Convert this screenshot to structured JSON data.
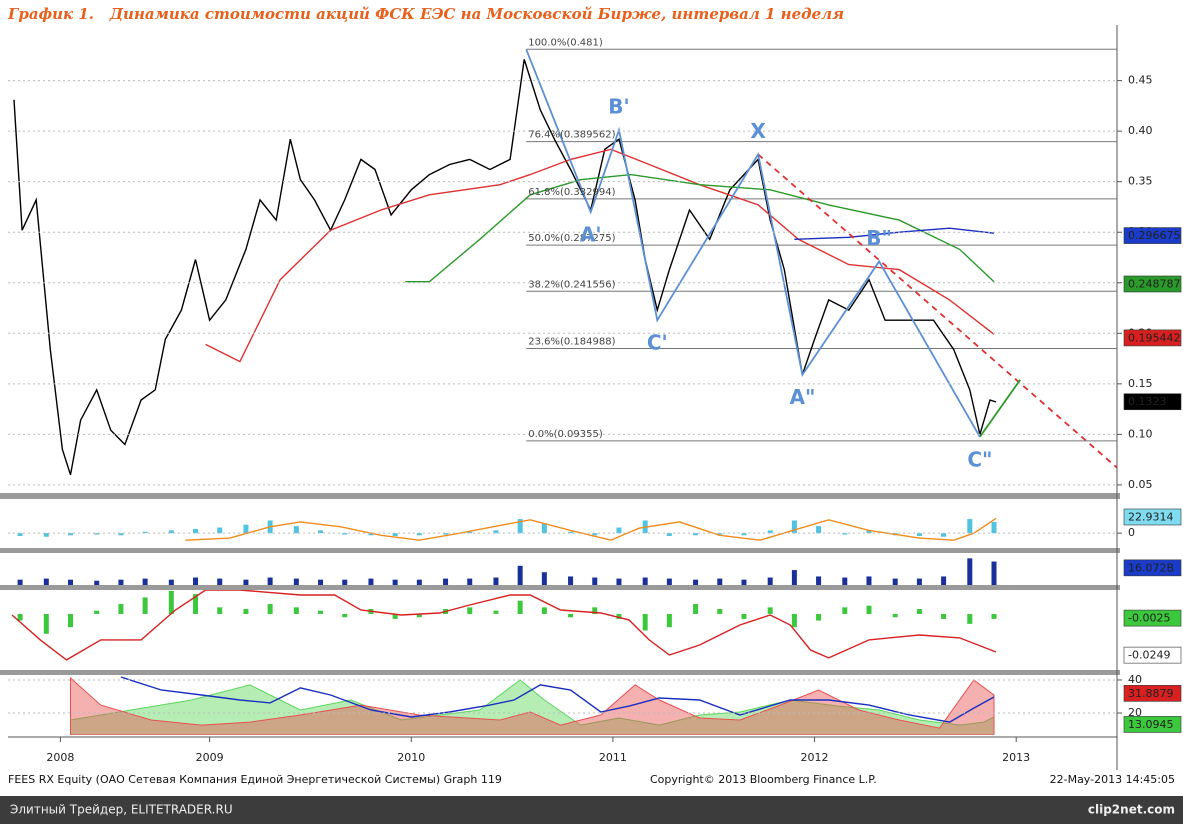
{
  "chart_data": [
    {
      "type": "line",
      "title": "График 1.   Динамика стоимости акций ФСК ЕЭС на Московской Бирже, интервал 1 неделя",
      "xlim": [
        2008.5,
        2014.0
      ],
      "ylim": [
        0.043,
        0.505
      ],
      "yticks": [
        0.05,
        {
          "value": 0.1,
          "label": "0.10"
        },
        0.15,
        {
          "value": 0.2,
          "label": "0.20"
        },
        0.25,
        {
          "value": 0.3,
          "label": "0.30"
        },
        0.35,
        {
          "value": 0.4,
          "label": "0.40"
        },
        0.45
      ],
      "grid": true,
      "series": [
        {
          "style": "line",
          "color": "#000000",
          "x": [
            2008.53,
            2008.57,
            2008.64,
            2008.71,
            2008.77,
            2008.81,
            2008.86,
            2008.94,
            2009.01,
            2009.08,
            2009.16,
            2009.23,
            2009.28,
            2009.36,
            2009.43,
            2009.5,
            2009.58,
            2009.68,
            2009.75,
            2009.83,
            2009.9,
            2009.95,
            2010.02,
            2010.1,
            2010.17,
            2010.25,
            2010.32,
            2010.4,
            2010.5,
            2010.59,
            2010.69,
            2010.79,
            2010.89,
            2010.99,
            2011.06,
            2011.14,
            2011.21,
            2011.29,
            2011.39,
            2011.46,
            2011.53,
            2011.61,
            2011.66,
            2011.72,
            2011.78,
            2011.88,
            2011.98,
            2012.08,
            2012.15,
            2012.22,
            2012.28,
            2012.35,
            2012.44,
            2012.5,
            2012.57,
            2012.67,
            2012.77,
            2012.85,
            2012.97,
            2013.09,
            2013.19,
            2013.27,
            2013.32,
            2013.37,
            2013.4
          ],
          "values": [
            0.431,
            0.302,
            0.332,
            0.184,
            0.085,
            0.06,
            0.114,
            0.144,
            0.104,
            0.09,
            0.134,
            0.144,
            0.194,
            0.223,
            0.273,
            0.213,
            0.233,
            0.283,
            0.332,
            0.312,
            0.392,
            0.352,
            0.332,
            0.302,
            0.332,
            0.372,
            0.362,
            0.317,
            0.342,
            0.357,
            0.367,
            0.372,
            0.362,
            0.372,
            0.471,
            0.421,
            0.392,
            0.362,
            0.322,
            0.382,
            0.392,
            0.332,
            0.273,
            0.223,
            0.263,
            0.322,
            0.293,
            0.342,
            0.357,
            0.372,
            0.312,
            0.263,
            0.159,
            0.194,
            0.233,
            0.223,
            0.253,
            0.213,
            0.213,
            0.213,
            0.184,
            0.144,
            0.1,
            0.134,
            0.132
          ]
        },
        {
          "style": "line",
          "color": "#e03030",
          "x": [
            2009.48,
            2009.65,
            2009.85,
            2010.1,
            2010.35,
            2010.59,
            2010.94,
            2011.09,
            2011.29,
            2011.49,
            2011.68,
            2011.93,
            2012.22,
            2012.42,
            2012.67,
            2012.92,
            2013.17,
            2013.39
          ],
          "values": [
            0.189,
            0.172,
            0.253,
            0.302,
            0.322,
            0.337,
            0.347,
            0.357,
            0.372,
            0.382,
            0.367,
            0.347,
            0.327,
            0.293,
            0.268,
            0.263,
            0.233,
            0.199
          ]
        },
        {
          "style": "line",
          "color": "#2a9a2a",
          "x": [
            2010.47,
            2010.59,
            2010.84,
            2011.09,
            2011.34,
            2011.59,
            2011.93,
            2012.28,
            2012.57,
            2012.92,
            2013.22,
            2013.39
          ],
          "values": [
            0.251,
            0.251,
            0.293,
            0.337,
            0.352,
            0.357,
            0.347,
            0.342,
            0.327,
            0.312,
            0.283,
            0.251
          ]
        },
        {
          "style": "line",
          "color": "#1a2fc0",
          "x": [
            2012.4,
            2012.67,
            2012.92,
            2013.17,
            2013.39
          ],
          "values": [
            0.293,
            0.295,
            0.3,
            0.304,
            0.299
          ]
        }
      ],
      "fib_levels": [
        {
          "value": 0.481,
          "label": "100.0%(0.481)"
        },
        {
          "value": 0.389562,
          "label": "76.4%(0.389562)"
        },
        {
          "value": 0.332994,
          "label": "61.8%(0.332994)"
        },
        {
          "value": 0.287275,
          "label": "50.0%(0.287275)"
        },
        {
          "value": 0.241556,
          "label": "38.2%(0.241556)"
        },
        {
          "value": 0.184988,
          "label": "23.6%(0.184988)"
        },
        {
          "value": 0.09355,
          "label": "0.0%(0.09355)"
        }
      ],
      "pattern": {
        "color": "#5b8fd6",
        "x": [
          2011.07,
          2011.39,
          2011.53,
          2011.72,
          2012.22,
          2012.44,
          2012.82,
          2013.32
        ],
        "values": [
          0.481,
          0.32,
          0.401,
          0.213,
          0.377,
          0.159,
          0.271,
          0.0975
        ],
        "labels": [
          null,
          "A'",
          "B'",
          "C'",
          "X",
          "A\"",
          "B\"",
          "C\""
        ]
      },
      "trendline": {
        "color": "#e03030",
        "x": [
          2012.22,
          2014.0
        ],
        "values": [
          0.377,
          0.067
        ]
      },
      "projection": {
        "color": "#2a9a2a",
        "x": [
          2013.32,
          2013.52
        ],
        "values": [
          0.0975,
          0.154
        ]
      },
      "value_tags": [
        {
          "value": 0.296675,
          "color": "#1a3cc8"
        },
        {
          "value": 0.248787,
          "color": "#2a9a2a"
        },
        {
          "value": 0.195442,
          "color": "#d82020"
        },
        {
          "value": 0.1323,
          "color": "#000000"
        }
      ]
    },
    {
      "type": "line",
      "xlim": [
        2008.5,
        2014.0
      ],
      "ylim": [
        -21,
        47
      ],
      "yticks": [
        0
      ],
      "series": [
        {
          "style": "bar",
          "color": "#4fc3e0",
          "x": [
            2008.56,
            2008.69,
            2008.81,
            2008.94,
            2009.06,
            2009.18,
            2009.31,
            2009.43,
            2009.55,
            2009.68,
            2009.8,
            2009.93,
            2010.05,
            2010.17,
            2010.3,
            2010.42,
            2010.54,
            2010.67,
            2010.79,
            2010.92,
            2011.04,
            2011.16,
            2011.29,
            2011.41,
            2011.53,
            2011.66,
            2011.78,
            2011.91,
            2012.03,
            2012.15,
            2012.28,
            2012.4,
            2012.52,
            2012.65,
            2012.77,
            2012.9,
            2013.02,
            2013.14,
            2013.27,
            2013.39
          ],
          "values": [
            -4,
            -5,
            -3,
            -2,
            -3,
            2,
            4,
            6,
            8,
            12,
            18,
            10,
            4,
            -2,
            -3,
            -4,
            -3,
            -2,
            2,
            4,
            20,
            14,
            2,
            -3,
            8,
            18,
            -4,
            -3,
            -2,
            -3,
            4,
            18,
            10,
            -2,
            4,
            -3,
            -4,
            -5,
            20,
            16
          ]
        },
        {
          "style": "line",
          "color": "#f08c1e",
          "x": [
            2009.38,
            2009.6,
            2009.8,
            2009.95,
            2010.15,
            2010.35,
            2010.54,
            2010.74,
            2010.94,
            2011.09,
            2011.29,
            2011.49,
            2011.63,
            2011.83,
            2012.03,
            2012.23,
            2012.43,
            2012.57,
            2012.77,
            2013.02,
            2013.19,
            2013.29,
            2013.4
          ],
          "values": [
            -10,
            -7,
            9,
            16,
            9,
            -3,
            -10,
            0,
            11,
            19,
            4,
            -10,
            7,
            16,
            -3,
            -10,
            7,
            19,
            4,
            -7,
            -10,
            0,
            21
          ]
        }
      ],
      "value_tags": [
        {
          "value": 22.9314,
          "color": "#7fdcf0"
        }
      ]
    },
    {
      "type": "bar",
      "xlim": [
        2008.5,
        2014.0
      ],
      "ylim": [
        0,
        30
      ],
      "series": [
        {
          "style": "bar",
          "color": "#1a2f9a",
          "x": [
            2008.56,
            2008.69,
            2008.81,
            2008.94,
            2009.06,
            2009.18,
            2009.31,
            2009.43,
            2009.55,
            2009.68,
            2009.8,
            2009.93,
            2010.05,
            2010.17,
            2010.3,
            2010.42,
            2010.54,
            2010.67,
            2010.79,
            2010.92,
            2011.04,
            2011.16,
            2011.29,
            2011.41,
            2011.53,
            2011.66,
            2011.78,
            2011.91,
            2012.03,
            2012.15,
            2012.28,
            2012.4,
            2012.52,
            2012.65,
            2012.77,
            2012.9,
            2013.02,
            2013.14,
            2013.27,
            2013.39
          ],
          "values": [
            5,
            6,
            5,
            4,
            5,
            6,
            5,
            7,
            6,
            5,
            7,
            6,
            5,
            5,
            6,
            5,
            5,
            6,
            6,
            7,
            18,
            12,
            8,
            7,
            6,
            7,
            6,
            5,
            6,
            5,
            7,
            14,
            8,
            7,
            8,
            6,
            6,
            8,
            25,
            22
          ]
        }
      ],
      "value_tags": [
        {
          "value": 16.072,
          "label": "16.072B",
          "color": "#1a3cc8"
        }
      ]
    },
    {
      "type": "line",
      "xlim": [
        2008.5,
        2014.0
      ],
      "ylim": [
        -0.0339,
        0.0145
      ],
      "series": [
        {
          "style": "bar",
          "color": "#3cc83c",
          "x": [
            2008.56,
            2008.69,
            2008.81,
            2008.94,
            2009.06,
            2009.18,
            2009.31,
            2009.43,
            2009.55,
            2009.68,
            2009.8,
            2009.93,
            2010.05,
            2010.17,
            2010.3,
            2010.42,
            2010.54,
            2010.67,
            2010.79,
            2010.92,
            2011.04,
            2011.16,
            2011.29,
            2011.41,
            2011.53,
            2011.66,
            2011.78,
            2011.91,
            2012.03,
            2012.15,
            2012.28,
            2012.4,
            2012.52,
            2012.65,
            2012.77,
            2012.9,
            2013.02,
            2013.14,
            2013.27,
            2013.39
          ],
          "values": [
            -0.004,
            -0.012,
            -0.008,
            0.002,
            0.006,
            0.01,
            0.014,
            0.012,
            0.004,
            0.003,
            0.006,
            0.004,
            0.002,
            -0.002,
            0.003,
            -0.003,
            -0.002,
            0.003,
            0.004,
            0.002,
            0.008,
            0.004,
            -0.002,
            0.004,
            -0.003,
            -0.01,
            -0.008,
            0.006,
            0.003,
            -0.003,
            0.004,
            -0.008,
            -0.004,
            0.004,
            0.005,
            -0.002,
            0.003,
            -0.003,
            -0.006,
            -0.003
          ]
        },
        {
          "style": "line",
          "color": "#d82020",
          "x": [
            2008.52,
            2008.66,
            2008.79,
            2008.96,
            2009.16,
            2009.33,
            2009.48,
            2009.65,
            2009.95,
            2010.12,
            2010.25,
            2010.45,
            2010.64,
            2010.79,
            2010.99,
            2011.09,
            2011.24,
            2011.44,
            2011.58,
            2011.68,
            2011.78,
            2011.93,
            2012.13,
            2012.28,
            2012.38,
            2012.48,
            2012.57,
            2012.77,
            2013.02,
            2013.22,
            2013.4
          ],
          "values": [
            -0.0006,
            -0.0157,
            -0.0278,
            -0.0157,
            -0.0157,
            0.0024,
            0.0145,
            0.0145,
            0.0115,
            0.0115,
            0.0024,
            -0.0006,
            0.0006,
            0.0054,
            0.0115,
            0.0115,
            0.0024,
            0.0006,
            -0.0036,
            -0.0157,
            -0.0248,
            -0.0188,
            -0.0067,
            -0.0006,
            -0.0067,
            -0.0218,
            -0.0266,
            -0.0157,
            -0.0127,
            -0.0145,
            -0.023
          ]
        }
      ],
      "value_tags": [
        {
          "value": -0.0025,
          "color": "#3cc83c"
        },
        {
          "value": -0.0249,
          "color": "#ffffff"
        }
      ]
    },
    {
      "type": "line",
      "xlim": [
        2008.5,
        2014.0
      ],
      "ylim": [
        6.7,
        43
      ],
      "yticks": [
        20,
        40
      ],
      "xticks": [
        {
          "value": 2008.76,
          "label": "2008"
        },
        {
          "value": 2009.5,
          "label": "2009"
        },
        {
          "value": 2010.5,
          "label": "2010"
        },
        {
          "value": 2011.5,
          "label": "2011"
        },
        {
          "value": 2012.5,
          "label": "2012"
        },
        {
          "value": 2013.5,
          "label": "2013"
        }
      ],
      "series": [
        {
          "style": "area",
          "color": "#5cd65c",
          "x": [
            2008.81,
            2009.11,
            2009.41,
            2009.7,
            2009.95,
            2010.2,
            2010.45,
            2010.64,
            2010.84,
            2011.04,
            2011.16,
            2011.34,
            2011.53,
            2011.73,
            2011.93,
            2012.13,
            2012.38,
            2012.62,
            2012.82,
            2013.02,
            2013.22,
            2013.34,
            2013.39
          ],
          "values": [
            15.8,
            21.8,
            27.9,
            37.0,
            21.8,
            27.9,
            15.8,
            18.8,
            21.8,
            40.0,
            27.9,
            12.7,
            17.0,
            12.7,
            18.8,
            20.6,
            27.9,
            24.2,
            21.8,
            15.8,
            12.7,
            14.5,
            17.6
          ]
        },
        {
          "style": "area",
          "color": "#e85050",
          "x": [
            2008.81,
            2008.96,
            2009.21,
            2009.46,
            2009.7,
            2009.95,
            2010.25,
            2010.54,
            2010.94,
            2011.09,
            2011.24,
            2011.44,
            2011.61,
            2011.73,
            2011.93,
            2012.13,
            2012.33,
            2012.52,
            2012.72,
            2012.92,
            2013.12,
            2013.29,
            2013.39
          ],
          "values": [
            41.2,
            24.8,
            15.8,
            12.7,
            14.5,
            18.8,
            24.8,
            18.8,
            15.8,
            20.6,
            12.7,
            18.8,
            37.0,
            27.9,
            17.0,
            15.8,
            24.8,
            33.9,
            21.8,
            15.8,
            10.9,
            40.0,
            30.9
          ]
        },
        {
          "style": "line",
          "color": "#1a2fc0",
          "x": [
            2009.06,
            2009.26,
            2009.46,
            2009.65,
            2009.8,
            2009.95,
            2010.1,
            2010.3,
            2010.5,
            2010.69,
            2010.89,
            2011.01,
            2011.14,
            2011.29,
            2011.44,
            2011.58,
            2011.73,
            2011.93,
            2012.13,
            2012.38,
            2012.57,
            2012.77,
            2012.97,
            2013.17,
            2013.29,
            2013.39
          ],
          "values": [
            41.8,
            33.9,
            30.9,
            27.9,
            26.1,
            35.2,
            30.9,
            21.8,
            17.6,
            20.6,
            24.8,
            27.9,
            37.0,
            33.9,
            20.6,
            24.2,
            29.1,
            27.9,
            18.8,
            27.9,
            27.9,
            24.8,
            18.8,
            14.5,
            23.0,
            29.7
          ]
        }
      ],
      "value_tags": [
        {
          "value": 31.8879,
          "color": "#d82020"
        },
        {
          "value": 13.0945,
          "color": "#3cc83c"
        }
      ]
    }
  ],
  "footer": {
    "left": "FEES RX Equity (ОАО Сетевая Компания Единой Энергетической Системы) Graph 119",
    "center": "Copyright© 2013 Bloomberg Finance L.P.",
    "right": "22-May-2013 14:45:05"
  },
  "watermark": {
    "left": "Элитный Трейдер, ELITETRADER.RU",
    "right": "clip2net.com"
  }
}
